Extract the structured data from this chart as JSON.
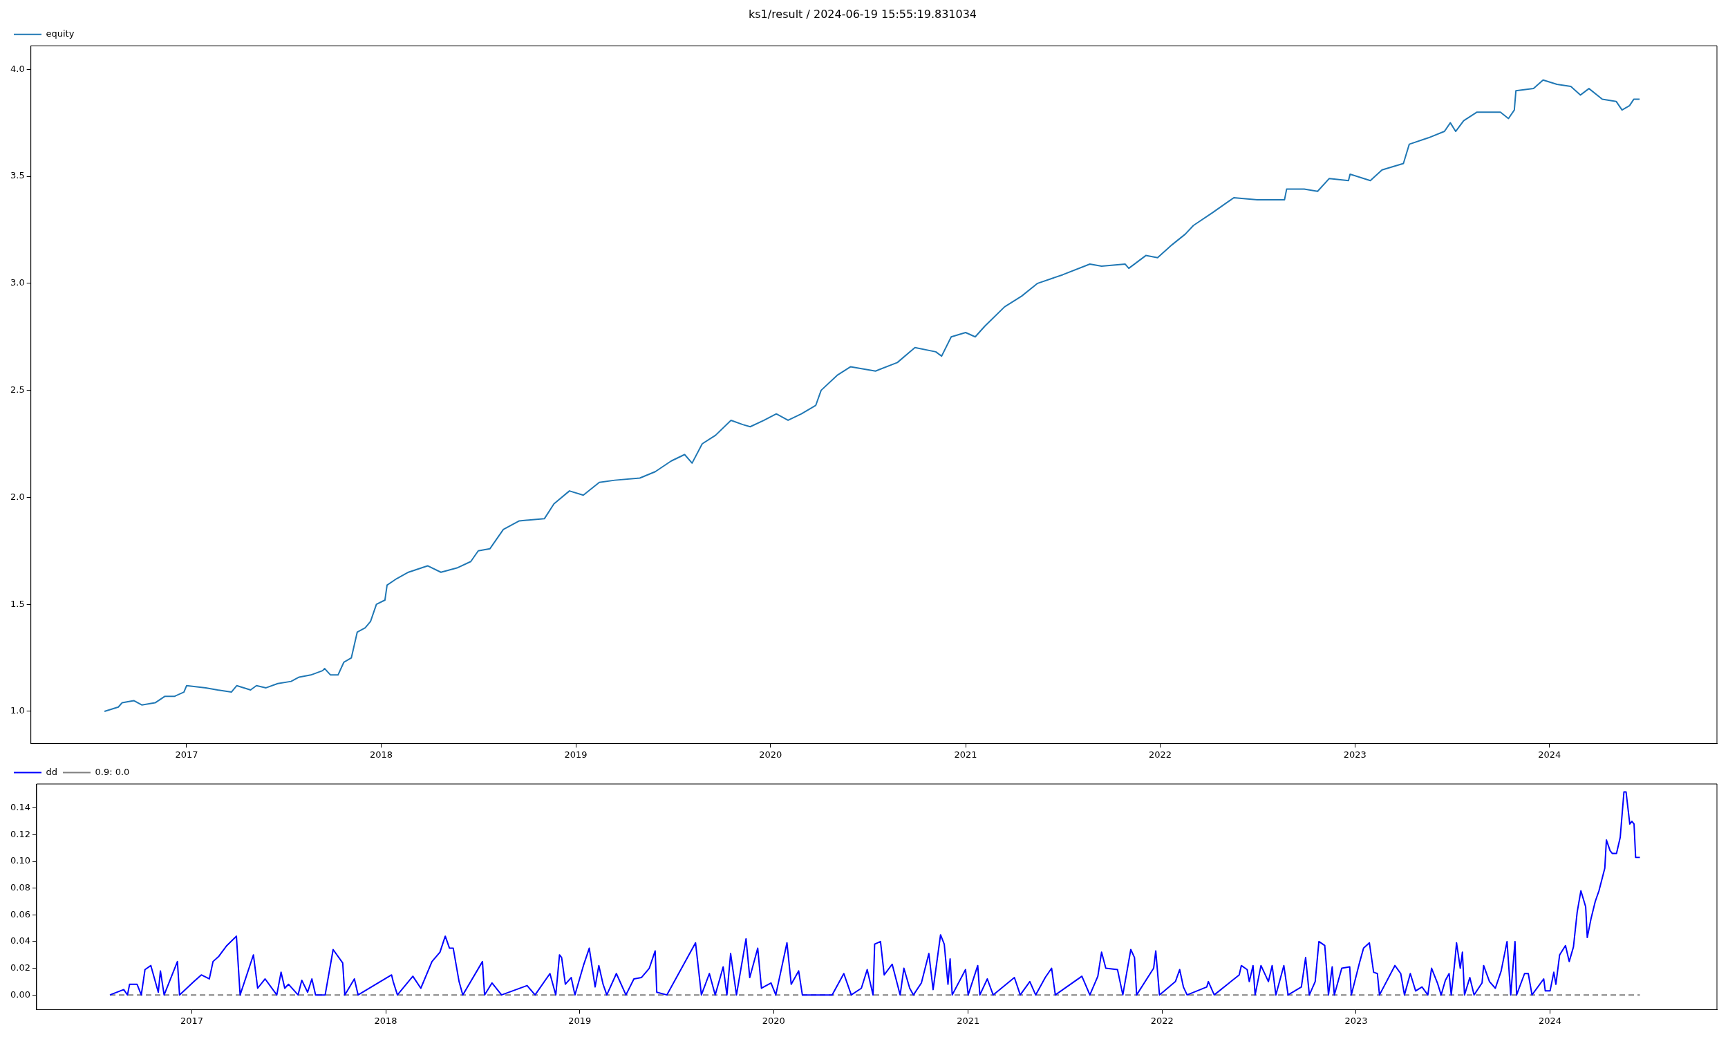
{
  "chart_data": [
    {
      "type": "line",
      "title": "ks1/result / 2024-06-19 15:55:19.831034",
      "legend": "top left",
      "grid": false,
      "marker": "none",
      "xlim": [
        "2016-03-15",
        "2024-11-10"
      ],
      "xticks": [
        {
          "value": "2017-01-01",
          "label": "2017"
        },
        {
          "value": "2018-01-01",
          "label": "2018"
        },
        {
          "value": "2019-01-01",
          "label": "2019"
        },
        {
          "value": "2020-01-01",
          "label": "2020"
        },
        {
          "value": "2021-01-01",
          "label": "2021"
        },
        {
          "value": "2022-01-01",
          "label": "2022"
        },
        {
          "value": "2023-01-01",
          "label": "2023"
        },
        {
          "value": "2024-01-01",
          "label": "2024"
        }
      ],
      "ylim": [
        0.85,
        4.11
      ],
      "yticks": [
        {
          "value": 1,
          "label": "1.0"
        },
        {
          "value": 1.5,
          "label": "1.5"
        },
        {
          "value": 2,
          "label": "2.0"
        },
        {
          "value": 2.5,
          "label": "2.5"
        },
        {
          "value": 3,
          "label": "3.0"
        },
        {
          "value": 3.5,
          "label": "3.5"
        },
        {
          "value": 4,
          "label": "4.0"
        }
      ],
      "series": [
        {
          "name": "equity",
          "color": "#1f77b4",
          "x": [
            "2016-07-31",
            "2016-08-26",
            "2016-09-02",
            "2016-09-24",
            "2016-10-09",
            "2016-11-03",
            "2016-11-21",
            "2016-12-09",
            "2016-12-27",
            "2017-01-01",
            "2017-02-06",
            "2017-02-28",
            "2017-03-26",
            "2017-04-05",
            "2017-05-01",
            "2017-05-12",
            "2017-05-30",
            "2017-06-21",
            "2017-07-16",
            "2017-07-31",
            "2017-08-22",
            "2017-09-13",
            "2017-09-17",
            "2017-09-28",
            "2017-10-12",
            "2017-10-23",
            "2017-11-06",
            "2017-11-17",
            "2017-12-02",
            "2017-12-12",
            "2017-12-23",
            "2018-01-08",
            "2018-01-12",
            "2018-01-30",
            "2018-02-21",
            "2018-03-29",
            "2018-04-23",
            "2018-05-23",
            "2018-06-18",
            "2018-07-02",
            "2018-07-24",
            "2018-08-18",
            "2018-09-17",
            "2018-11-03",
            "2018-11-21",
            "2018-12-20",
            "2019-01-15",
            "2019-02-14",
            "2019-03-15",
            "2019-05-01",
            "2019-05-30",
            "2019-06-29",
            "2019-07-24",
            "2019-08-07",
            "2019-08-26",
            "2019-09-20",
            "2019-10-19",
            "2019-11-10",
            "2019-11-24",
            "2019-12-20",
            "2020-01-12",
            "2020-02-03",
            "2020-02-28",
            "2020-03-26",
            "2020-04-05",
            "2020-05-05",
            "2020-05-30",
            "2020-07-16",
            "2020-08-26",
            "2020-09-28",
            "2020-11-06",
            "2020-11-17",
            "2020-12-05",
            "2021-01-01",
            "2021-01-19",
            "2021-02-06",
            "2021-03-15",
            "2021-04-16",
            "2021-05-16",
            "2021-07-02",
            "2021-08-22",
            "2021-09-13",
            "2021-10-27",
            "2021-11-03",
            "2021-12-05",
            "2021-12-27",
            "2022-01-23",
            "2022-02-17",
            "2022-03-04",
            "2022-04-09",
            "2022-05-19",
            "2022-07-02",
            "2022-08-22",
            "2022-08-26",
            "2022-09-28",
            "2022-10-23",
            "2022-11-14",
            "2022-12-20",
            "2022-12-23",
            "2023-01-30",
            "2023-02-21",
            "2023-04-02",
            "2023-04-13",
            "2023-05-19",
            "2023-06-18",
            "2023-06-29",
            "2023-07-09",
            "2023-07-24",
            "2023-08-18",
            "2023-10-01",
            "2023-10-16",
            "2023-10-27",
            "2023-10-30",
            "2023-12-02",
            "2023-12-20",
            "2024-01-15",
            "2024-02-10",
            "2024-02-28",
            "2024-03-15",
            "2024-04-09",
            "2024-05-05",
            "2024-05-16",
            "2024-05-30",
            "2024-06-07",
            "2024-06-18"
          ],
          "values": [
            1.0,
            1.02,
            1.04,
            1.05,
            1.03,
            1.04,
            1.07,
            1.07,
            1.09,
            1.12,
            1.11,
            1.1,
            1.09,
            1.12,
            1.1,
            1.12,
            1.11,
            1.13,
            1.14,
            1.16,
            1.17,
            1.19,
            1.2,
            1.17,
            1.17,
            1.23,
            1.25,
            1.37,
            1.39,
            1.42,
            1.5,
            1.52,
            1.59,
            1.62,
            1.65,
            1.68,
            1.65,
            1.67,
            1.7,
            1.75,
            1.76,
            1.85,
            1.89,
            1.9,
            1.97,
            2.03,
            2.01,
            2.07,
            2.08,
            2.09,
            2.12,
            2.17,
            2.2,
            2.16,
            2.25,
            2.29,
            2.36,
            2.34,
            2.33,
            2.36,
            2.39,
            2.36,
            2.39,
            2.43,
            2.5,
            2.57,
            2.61,
            2.59,
            2.63,
            2.7,
            2.68,
            2.66,
            2.75,
            2.77,
            2.75,
            2.8,
            2.89,
            2.94,
            3.0,
            3.04,
            3.09,
            3.08,
            3.09,
            3.07,
            3.13,
            3.12,
            3.18,
            3.23,
            3.27,
            3.33,
            3.4,
            3.39,
            3.39,
            3.44,
            3.44,
            3.43,
            3.49,
            3.48,
            3.51,
            3.48,
            3.53,
            3.56,
            3.65,
            3.68,
            3.71,
            3.75,
            3.71,
            3.76,
            3.8,
            3.8,
            3.77,
            3.81,
            3.9,
            3.91,
            3.95,
            3.93,
            3.92,
            3.88,
            3.91,
            3.86,
            3.85,
            3.81,
            3.83,
            3.86,
            3.86
          ]
        }
      ]
    },
    {
      "type": "line",
      "legend": "top left",
      "grid": false,
      "marker": "none",
      "xlim": [
        "2016-03-15",
        "2024-11-10"
      ],
      "xticks": [
        {
          "value": "2017-01-01",
          "label": "2017"
        },
        {
          "value": "2018-01-01",
          "label": "2018"
        },
        {
          "value": "2019-01-01",
          "label": "2019"
        },
        {
          "value": "2020-01-01",
          "label": "2020"
        },
        {
          "value": "2021-01-01",
          "label": "2021"
        },
        {
          "value": "2022-01-01",
          "label": "2022"
        },
        {
          "value": "2023-01-01",
          "label": "2023"
        },
        {
          "value": "2024-01-01",
          "label": "2024"
        }
      ],
      "ylim": [
        -0.011,
        0.158
      ],
      "yticks": [
        {
          "value": 0,
          "label": "0.00"
        },
        {
          "value": 0.02,
          "label": "0.02"
        },
        {
          "value": 0.04,
          "label": "0.04"
        },
        {
          "value": 0.06,
          "label": "0.06"
        },
        {
          "value": 0.08,
          "label": "0.08"
        },
        {
          "value": 0.1,
          "label": "0.10"
        },
        {
          "value": 0.12,
          "label": "0.12"
        },
        {
          "value": 0.14,
          "label": "0.14"
        }
      ],
      "series": [
        {
          "name": "dd",
          "color": "#0000ff",
          "line_style": "solid",
          "x": [
            "2016-07-31",
            "2016-08-26",
            "2016-09-02",
            "2016-09-06",
            "2016-09-20",
            "2016-09-28",
            "2016-10-05",
            "2016-10-16",
            "2016-10-30",
            "2016-11-03",
            "2016-11-10",
            "2016-12-05",
            "2016-12-09",
            "2017-01-05",
            "2017-01-19",
            "2017-02-03",
            "2017-02-10",
            "2017-02-21",
            "2017-03-08",
            "2017-03-26",
            "2017-04-02",
            "2017-04-27",
            "2017-05-05",
            "2017-05-19",
            "2017-06-10",
            "2017-06-18",
            "2017-06-25",
            "2017-07-02",
            "2017-07-20",
            "2017-07-27",
            "2017-08-07",
            "2017-08-15",
            "2017-08-22",
            "2017-09-09",
            "2017-09-24",
            "2017-10-12",
            "2017-10-16",
            "2017-11-03",
            "2017-11-10",
            "2018-01-12",
            "2018-01-15",
            "2018-01-23",
            "2018-02-21",
            "2018-03-08",
            "2018-03-29",
            "2018-04-13",
            "2018-04-23",
            "2018-05-01",
            "2018-05-08",
            "2018-05-19",
            "2018-05-26",
            "2018-07-02",
            "2018-07-06",
            "2018-07-20",
            "2018-08-07",
            "2018-09-24",
            "2018-10-09",
            "2018-11-06",
            "2018-11-17",
            "2018-11-24",
            "2018-11-28",
            "2018-12-05",
            "2018-12-16",
            "2018-12-23",
            "2019-01-08",
            "2019-01-19",
            "2019-01-30",
            "2019-02-06",
            "2019-02-14",
            "2019-02-21",
            "2019-03-11",
            "2019-03-29",
            "2019-04-13",
            "2019-04-27",
            "2019-05-12",
            "2019-05-23",
            "2019-05-26",
            "2019-06-14",
            "2019-08-07",
            "2019-08-18",
            "2019-09-02",
            "2019-09-13",
            "2019-09-28",
            "2019-10-05",
            "2019-10-12",
            "2019-10-23",
            "2019-11-10",
            "2019-11-17",
            "2019-12-02",
            "2019-12-09",
            "2019-12-27",
            "2020-01-05",
            "2020-01-26",
            "2020-02-03",
            "2020-02-17",
            "2020-02-24",
            "2020-04-20",
            "2020-05-12",
            "2020-05-26",
            "2020-06-14",
            "2020-06-25",
            "2020-07-06",
            "2020-07-09",
            "2020-07-20",
            "2020-07-27",
            "2020-08-11",
            "2020-08-26",
            "2020-09-02",
            "2020-09-13",
            "2020-09-20",
            "2020-10-05",
            "2020-10-19",
            "2020-10-27",
            "2020-11-10",
            "2020-11-17",
            "2020-11-24",
            "2020-11-28",
            "2020-12-02",
            "2020-12-27",
            "2021-01-01",
            "2021-01-19",
            "2021-01-23",
            "2021-02-06",
            "2021-02-17",
            "2021-03-29",
            "2021-04-09",
            "2021-04-27",
            "2021-05-08",
            "2021-05-26",
            "2021-06-07",
            "2021-06-14",
            "2021-08-03",
            "2021-08-18",
            "2021-09-02",
            "2021-09-09",
            "2021-09-17",
            "2021-10-09",
            "2021-10-19",
            "2021-11-03",
            "2021-11-10",
            "2021-11-14",
            "2021-12-16",
            "2021-12-20",
            "2021-12-27",
            "2022-01-26",
            "2022-02-03",
            "2022-02-10",
            "2022-02-17",
            "2022-03-26",
            "2022-03-29",
            "2022-04-09",
            "2022-05-26",
            "2022-05-30",
            "2022-06-10",
            "2022-06-14",
            "2022-06-21",
            "2022-06-25",
            "2022-07-06",
            "2022-07-20",
            "2022-07-27",
            "2022-08-03",
            "2022-08-18",
            "2022-08-26",
            "2022-09-20",
            "2022-09-28",
            "2022-10-05",
            "2022-10-16",
            "2022-10-23",
            "2022-11-03",
            "2022-11-06",
            "2022-11-10",
            "2022-11-17",
            "2022-11-21",
            "2022-12-05",
            "2022-12-20",
            "2022-12-23",
            "2023-01-08",
            "2023-01-15",
            "2023-01-26",
            "2023-02-03",
            "2023-02-10",
            "2023-02-14",
            "2023-03-15",
            "2023-03-26",
            "2023-04-02",
            "2023-04-13",
            "2023-04-23",
            "2023-05-05",
            "2023-05-16",
            "2023-05-23",
            "2023-06-03",
            "2023-06-10",
            "2023-06-18",
            "2023-06-25",
            "2023-06-29",
            "2023-07-06",
            "2023-07-09",
            "2023-07-16",
            "2023-07-20",
            "2023-07-24",
            "2023-08-03",
            "2023-08-11",
            "2023-08-26",
            "2023-08-29",
            "2023-09-09",
            "2023-09-20",
            "2023-10-01",
            "2023-10-12",
            "2023-10-19",
            "2023-10-27",
            "2023-10-30",
            "2023-11-14",
            "2023-11-21",
            "2023-11-28",
            "2023-12-20",
            "2023-12-23",
            "2024-01-01",
            "2024-01-08",
            "2024-01-12",
            "2024-01-19",
            "2024-01-30",
            "2024-02-06",
            "2024-02-14",
            "2024-02-21",
            "2024-02-28",
            "2024-03-08",
            "2024-03-11",
            "2024-03-18",
            "2024-03-26",
            "2024-04-02",
            "2024-04-13",
            "2024-04-16",
            "2024-04-23",
            "2024-04-27",
            "2024-05-05",
            "2024-05-12",
            "2024-05-19",
            "2024-05-23",
            "2024-05-30",
            "2024-06-03",
            "2024-06-07",
            "2024-06-10",
            "2024-06-18"
          ],
          "values": [
            0,
            0.004,
            0,
            0.008,
            0.008,
            0,
            0.019,
            0.022,
            0.002,
            0.018,
            0,
            0.025,
            0,
            0.01,
            0.015,
            0.012,
            0.025,
            0.029,
            0.037,
            0.044,
            0,
            0.03,
            0.005,
            0.012,
            0,
            0.017,
            0.005,
            0.008,
            0,
            0.011,
            0.002,
            0.012,
            0,
            0,
            0.034,
            0.024,
            0,
            0.012,
            0,
            0.015,
            0.01,
            0,
            0.014,
            0.005,
            0.025,
            0.032,
            0.044,
            0.035,
            0.035,
            0.01,
            0,
            0.025,
            0,
            0.009,
            0,
            0.007,
            0,
            0.016,
            0,
            0.03,
            0.028,
            0.008,
            0.013,
            0,
            0.022,
            0.035,
            0.006,
            0.022,
            0.008,
            0,
            0.016,
            0,
            0.012,
            0.013,
            0.02,
            0.033,
            0.002,
            0,
            0.039,
            0,
            0.016,
            0,
            0.021,
            0,
            0.031,
            0,
            0.042,
            0.013,
            0.035,
            0.005,
            0.009,
            0,
            0.039,
            0.008,
            0.018,
            0,
            0,
            0.016,
            0,
            0.005,
            0.019,
            0,
            0.038,
            0.04,
            0.015,
            0.023,
            0,
            0.02,
            0.005,
            0,
            0.009,
            0.031,
            0.004,
            0.045,
            0.038,
            0.008,
            0.027,
            0,
            0.019,
            0,
            0.022,
            0,
            0.012,
            0,
            0.013,
            0,
            0.01,
            0,
            0.013,
            0.02,
            0,
            0.014,
            0,
            0.014,
            0.032,
            0.02,
            0.019,
            0,
            0.034,
            0.028,
            0,
            0.02,
            0.033,
            0,
            0.01,
            0.019,
            0.006,
            0,
            0.006,
            0.01,
            0,
            0.015,
            0.022,
            0.019,
            0.01,
            0.022,
            0,
            0.022,
            0.01,
            0.022,
            0,
            0.022,
            0,
            0.006,
            0.028,
            0,
            0.01,
            0.04,
            0.037,
            0.022,
            0,
            0.021,
            0,
            0.02,
            0.021,
            0,
            0.025,
            0.035,
            0.039,
            0.017,
            0.016,
            0,
            0.022,
            0.016,
            0,
            0.016,
            0.003,
            0.006,
            0,
            0.02,
            0.009,
            0,
            0.011,
            0.016,
            0,
            0.026,
            0.039,
            0.02,
            0.032,
            0,
            0.013,
            0,
            0.009,
            0.022,
            0.01,
            0.005,
            0.018,
            0.04,
            0,
            0.04,
            0,
            0.016,
            0.016,
            0,
            0.012,
            0.003,
            0.003,
            0.017,
            0.008,
            0.03,
            0.037,
            0.025,
            0.036,
            0.062,
            0.078,
            0.066,
            0.043,
            0.057,
            0.07,
            0.078,
            0.095,
            0.116,
            0.108,
            0.106,
            0.106,
            0.118,
            0.152,
            0.152,
            0.128,
            0.13,
            0.128,
            0.103,
            0.103
          ]
        },
        {
          "name": "0.9: 0.0",
          "color": "#808080",
          "line_style": "dashed",
          "x": [
            "2016-07-31",
            "2024-06-18"
          ],
          "values": [
            0,
            0
          ]
        }
      ]
    }
  ]
}
